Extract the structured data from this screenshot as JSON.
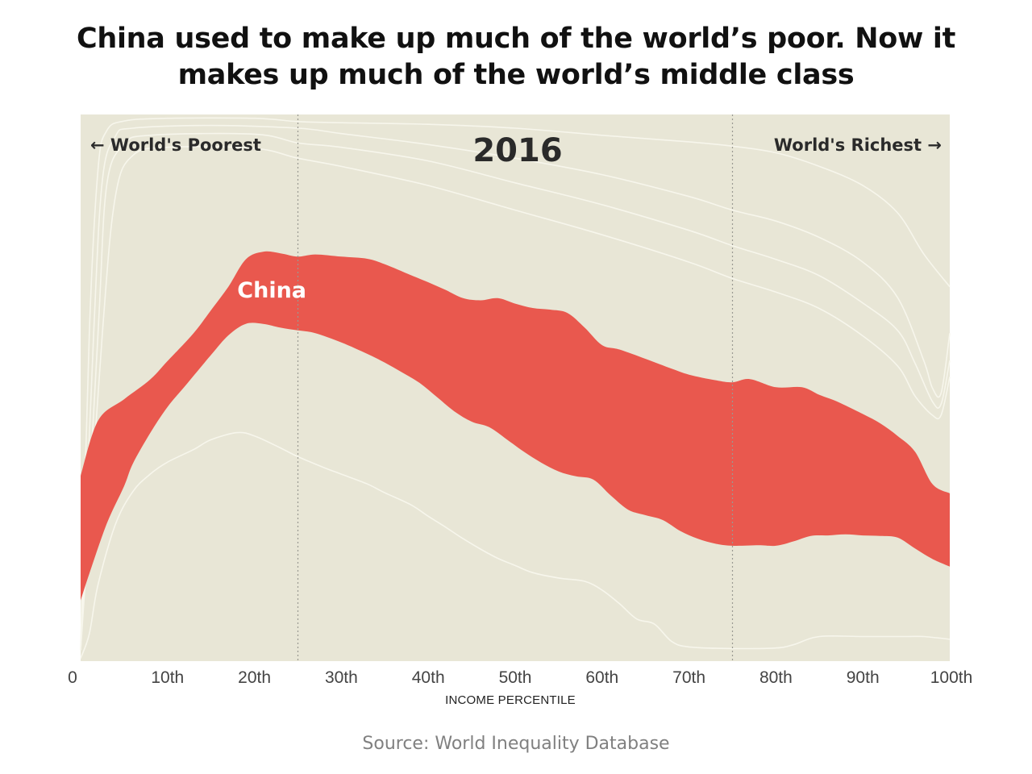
{
  "header": {
    "title_line1": "China used to make up much of the world’s poor. Now it",
    "title_line2": "makes up much of the world’s middle class"
  },
  "footer": {
    "source": "Source: World Inequality Database"
  },
  "colors": {
    "background_plot": "#e8e6d6",
    "highlight": "#e9584e",
    "contour": "#f7f6ec",
    "divider": "#9a9a92"
  },
  "chart_data": {
    "type": "area",
    "title": "2016",
    "xlabel": "INCOME PERCENTILE",
    "ylabel": "",
    "xlim": [
      0,
      100
    ],
    "ylim": [
      0,
      100
    ],
    "grid": false,
    "annotations": {
      "left": "← World's Poorest",
      "right": "World's Richest →",
      "year": "2016"
    },
    "x_ticks": [
      0,
      10,
      20,
      30,
      40,
      50,
      60,
      70,
      80,
      90,
      100
    ],
    "x_tick_labels": [
      "0",
      "10th",
      "20th",
      "30th",
      "40th",
      "50th",
      "60th",
      "70th",
      "80th",
      "90th",
      "100th"
    ],
    "dividers": [
      25,
      75
    ],
    "highlight_series": {
      "name": "China",
      "label": "China",
      "label_position": [
        22,
        68
      ],
      "upper": [
        [
          0,
          33.9
        ],
        [
          2,
          44
        ],
        [
          5,
          47.9
        ],
        [
          8,
          51.5
        ],
        [
          10,
          54.9
        ],
        [
          13,
          60
        ],
        [
          15,
          64.2
        ],
        [
          17,
          68.5
        ],
        [
          19,
          73.5
        ],
        [
          21,
          74.9
        ],
        [
          23,
          74.6
        ],
        [
          25,
          74.0
        ],
        [
          27,
          74.4
        ],
        [
          30,
          74.0
        ],
        [
          33,
          73.6
        ],
        [
          35,
          72.6
        ],
        [
          38,
          70.6
        ],
        [
          40,
          69.3
        ],
        [
          42,
          67.9
        ],
        [
          44,
          66.4
        ],
        [
          46,
          66.0
        ],
        [
          48,
          66.4
        ],
        [
          50,
          65.4
        ],
        [
          52,
          64.6
        ],
        [
          54,
          64.3
        ],
        [
          56,
          63.7
        ],
        [
          58,
          61.0
        ],
        [
          60,
          57.8
        ],
        [
          62,
          57.0
        ],
        [
          65,
          55.3
        ],
        [
          68,
          53.5
        ],
        [
          70,
          52.4
        ],
        [
          73,
          51.4
        ],
        [
          75,
          51.0
        ],
        [
          77,
          51.6
        ],
        [
          80,
          50.1
        ],
        [
          83,
          50.1
        ],
        [
          85,
          48.7
        ],
        [
          87,
          47.5
        ],
        [
          90,
          45.2
        ],
        [
          92,
          43.5
        ],
        [
          94,
          41.2
        ],
        [
          96,
          38.3
        ],
        [
          98,
          32.4
        ],
        [
          100,
          30.7
        ]
      ],
      "lower": [
        [
          0,
          11.1
        ],
        [
          1,
          16
        ],
        [
          3,
          25.1
        ],
        [
          5,
          32
        ],
        [
          6,
          36.1
        ],
        [
          8,
          41.7
        ],
        [
          10,
          46.5
        ],
        [
          12,
          50.3
        ],
        [
          15,
          56.0
        ],
        [
          17,
          59.6
        ],
        [
          19,
          61.7
        ],
        [
          21,
          61.7
        ],
        [
          23,
          61.0
        ],
        [
          25,
          60.5
        ],
        [
          27,
          60.0
        ],
        [
          30,
          58.3
        ],
        [
          33,
          56.2
        ],
        [
          35,
          54.6
        ],
        [
          37,
          52.8
        ],
        [
          39,
          50.9
        ],
        [
          41,
          48.3
        ],
        [
          43,
          45.7
        ],
        [
          45,
          43.8
        ],
        [
          47,
          42.8
        ],
        [
          49,
          40.6
        ],
        [
          51,
          38.3
        ],
        [
          53,
          36.3
        ],
        [
          55,
          34.7
        ],
        [
          57,
          33.8
        ],
        [
          59,
          33.2
        ],
        [
          61,
          30.3
        ],
        [
          63,
          27.7
        ],
        [
          65,
          26.7
        ],
        [
          67,
          25.8
        ],
        [
          69,
          23.8
        ],
        [
          71,
          22.4
        ],
        [
          73,
          21.5
        ],
        [
          75,
          21.1
        ],
        [
          78,
          21.2
        ],
        [
          80,
          21.1
        ],
        [
          82,
          21.9
        ],
        [
          84,
          22.9
        ],
        [
          86,
          23.0
        ],
        [
          88,
          23.2
        ],
        [
          90,
          23.0
        ],
        [
          92,
          22.9
        ],
        [
          94,
          22.6
        ],
        [
          96,
          20.6
        ],
        [
          98,
          18.7
        ],
        [
          100,
          17.3
        ]
      ]
    },
    "contour_lines": [
      {
        "name": "upper-contour-1",
        "points": [
          [
            0,
            2
          ],
          [
            1,
            60
          ],
          [
            2,
            90
          ],
          [
            3,
            97
          ],
          [
            5,
            98.8
          ],
          [
            10,
            99.3
          ],
          [
            20,
            99.3
          ],
          [
            25,
            98.7
          ],
          [
            30,
            98.5
          ],
          [
            40,
            98.2
          ],
          [
            50,
            97.5
          ],
          [
            60,
            96.2
          ],
          [
            70,
            95.0
          ],
          [
            75,
            94.2
          ],
          [
            80,
            93.0
          ],
          [
            85,
            90.5
          ],
          [
            90,
            87.0
          ],
          [
            94,
            82.0
          ],
          [
            97,
            74.5
          ],
          [
            100,
            68.5
          ]
        ]
      },
      {
        "name": "upper-contour-2",
        "points": [
          [
            0,
            2
          ],
          [
            1.5,
            60
          ],
          [
            2.5,
            88
          ],
          [
            4,
            96
          ],
          [
            6,
            97.5
          ],
          [
            15,
            98
          ],
          [
            25,
            97.5
          ],
          [
            30,
            96.5
          ],
          [
            40,
            94.5
          ],
          [
            50,
            92.0
          ],
          [
            60,
            89.0
          ],
          [
            70,
            85.0
          ],
          [
            75,
            82.5
          ],
          [
            80,
            80.5
          ],
          [
            85,
            77.5
          ],
          [
            90,
            73.0
          ],
          [
            94,
            66.5
          ],
          [
            97,
            55.0
          ],
          [
            98,
            50.0
          ],
          [
            99,
            49.0
          ],
          [
            100,
            60
          ]
        ]
      },
      {
        "name": "upper-contour-3",
        "points": [
          [
            0,
            2
          ],
          [
            2,
            60
          ],
          [
            3,
            87
          ],
          [
            5,
            94.5
          ],
          [
            8,
            96.2
          ],
          [
            20,
            96.4
          ],
          [
            25,
            94.8
          ],
          [
            30,
            94.0
          ],
          [
            40,
            91.5
          ],
          [
            50,
            87.5
          ],
          [
            60,
            83.5
          ],
          [
            70,
            78.8
          ],
          [
            75,
            76.0
          ],
          [
            80,
            73.5
          ],
          [
            85,
            70.5
          ],
          [
            90,
            65.5
          ],
          [
            94,
            60.5
          ],
          [
            96,
            54.5
          ],
          [
            98,
            47.5
          ],
          [
            99,
            47.0
          ],
          [
            100,
            55
          ]
        ]
      },
      {
        "name": "upper-contour-4",
        "points": [
          [
            0,
            2
          ],
          [
            2.5,
            60
          ],
          [
            4,
            85
          ],
          [
            6,
            92.5
          ],
          [
            10,
            94
          ],
          [
            20,
            93.8
          ],
          [
            25,
            92.0
          ],
          [
            30,
            90.5
          ],
          [
            40,
            87.0
          ],
          [
            50,
            82.5
          ],
          [
            60,
            78.0
          ],
          [
            70,
            73.0
          ],
          [
            75,
            70.0
          ],
          [
            80,
            67.5
          ],
          [
            85,
            64.5
          ],
          [
            90,
            59.5
          ],
          [
            94,
            54.0
          ],
          [
            96,
            48.5
          ],
          [
            98,
            45.0
          ],
          [
            99,
            45.0
          ],
          [
            100,
            52
          ]
        ]
      },
      {
        "name": "lower-contour",
        "points": [
          [
            0,
            0.5
          ],
          [
            1,
            5
          ],
          [
            2,
            14
          ],
          [
            4,
            25
          ],
          [
            6,
            31
          ],
          [
            8,
            34.2
          ],
          [
            10,
            36.4
          ],
          [
            13,
            38.7
          ],
          [
            15,
            40.5
          ],
          [
            18,
            41.8
          ],
          [
            20,
            41.2
          ],
          [
            23,
            39.0
          ],
          [
            25,
            37.4
          ],
          [
            28,
            35.4
          ],
          [
            30,
            34.2
          ],
          [
            33,
            32.4
          ],
          [
            35,
            30.8
          ],
          [
            38,
            28.6
          ],
          [
            40,
            26.5
          ],
          [
            42,
            24.5
          ],
          [
            44,
            22.4
          ],
          [
            46,
            20.5
          ],
          [
            48,
            18.8
          ],
          [
            50,
            17.5
          ],
          [
            52,
            16.2
          ],
          [
            55,
            15.2
          ],
          [
            58,
            14.6
          ],
          [
            60,
            13.0
          ],
          [
            62,
            10.5
          ],
          [
            64,
            7.7
          ],
          [
            66,
            6.8
          ],
          [
            68,
            3.6
          ],
          [
            70,
            2.6
          ],
          [
            75,
            2.3
          ],
          [
            80,
            2.4
          ],
          [
            82,
            3.0
          ],
          [
            85,
            4.5
          ],
          [
            90,
            4.5
          ],
          [
            95,
            4.5
          ],
          [
            97,
            4.5
          ],
          [
            100,
            4.0
          ]
        ]
      }
    ]
  }
}
